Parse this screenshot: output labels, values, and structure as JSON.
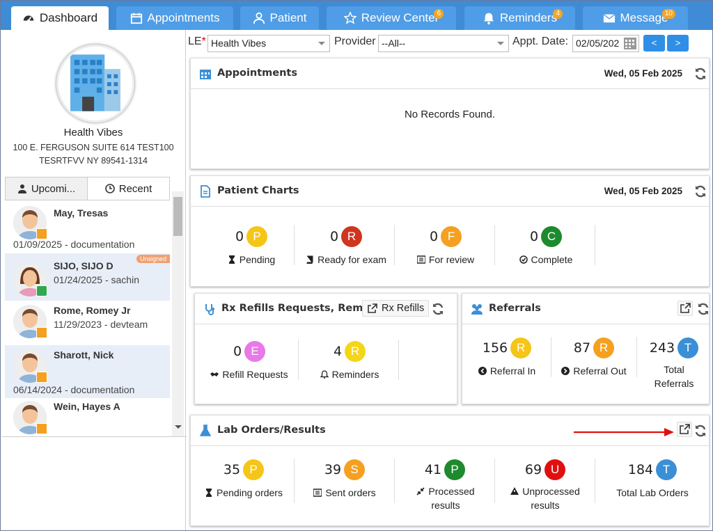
{
  "tabs": [
    {
      "label": "Dashboard",
      "icon": "dashboard-icon"
    },
    {
      "label": "Appointments",
      "icon": "calendar-icon"
    },
    {
      "label": "Patient",
      "icon": "user-icon"
    },
    {
      "label": "Review Center",
      "icon": "star-icon",
      "badge": "6"
    },
    {
      "label": "Reminders",
      "icon": "bell-icon",
      "badge": "4"
    },
    {
      "label": "Message",
      "icon": "envelope-icon",
      "badge": "10"
    }
  ],
  "clinic": {
    "name": "Health Vibes",
    "addr1": "100 E. FERGUSON SUITE 614 TEST100",
    "addr2": "TESRTFVV NY 89541-1314"
  },
  "patient_tabs": {
    "upcoming": "Upcomi...",
    "recent": "Recent"
  },
  "patients": [
    {
      "name": "May, Tresas",
      "detail": "01/09/2025 - documentation"
    },
    {
      "name": "SIJO, SIJO D",
      "detail": "01/24/2025 - sachin",
      "badge": "Unsigned"
    },
    {
      "name": "Rome, Romey Jr",
      "detail": "11/29/2023 - devteam"
    },
    {
      "name": "Sharott, Nick",
      "detail": "06/14/2024 - documentation"
    },
    {
      "name": "Wein, Hayes A",
      "detail": ""
    }
  ],
  "filters": {
    "le_label": "LE",
    "le_value": "Health Vibes",
    "provider_label": "Provider",
    "provider_value": "--All--",
    "date_label": "Appt. Date:",
    "date_value": "02/05/202",
    "prev": "<",
    "next": ">"
  },
  "appointments": {
    "title": "Appointments",
    "date": "Wed, 05 Feb 2025",
    "empty": "No Records Found."
  },
  "charts": {
    "title": "Patient Charts",
    "date": "Wed, 05 Feb 2025",
    "stats": [
      {
        "n": "0",
        "l": "P",
        "label": "Pending",
        "c": "#f5c518"
      },
      {
        "n": "0",
        "l": "R",
        "label": "Ready for exam",
        "c": "#d0351e"
      },
      {
        "n": "0",
        "l": "F",
        "label": "For review",
        "c": "#f5a020"
      },
      {
        "n": "0",
        "l": "C",
        "label": "Complete",
        "c": "#1e8a2e"
      }
    ]
  },
  "rx": {
    "title": "Rx Refills Requests, Remi...",
    "button": "Rx Refills",
    "stats": [
      {
        "n": "0",
        "l": "E",
        "label": "Refill Requests",
        "c": "#e879e8"
      },
      {
        "n": "4",
        "l": "R",
        "label": "Reminders",
        "c": "#f5d518"
      }
    ]
  },
  "referrals": {
    "title": "Referrals",
    "stats": [
      {
        "n": "156",
        "l": "R",
        "label": "Referral In",
        "c": "#f5c518"
      },
      {
        "n": "87",
        "l": "R",
        "label": "Referral Out",
        "c": "#f5a020"
      },
      {
        "n": "243",
        "l": "T",
        "label": "Total Referrals",
        "c": "#3b8fd6"
      }
    ]
  },
  "lab": {
    "title": "Lab Orders/Results",
    "stats": [
      {
        "n": "35",
        "l": "P",
        "label": "Pending orders",
        "c": "#f5c518"
      },
      {
        "n": "39",
        "l": "S",
        "label": "Sent orders",
        "c": "#f5a020"
      },
      {
        "n": "41",
        "l": "P",
        "label": "Processed results",
        "c": "#1e8a2e"
      },
      {
        "n": "69",
        "l": "U",
        "label": "Unprocessed results",
        "c": "#e01010"
      },
      {
        "n": "184",
        "l": "T",
        "label": "Total Lab Orders",
        "c": "#3b8fd6"
      }
    ]
  }
}
